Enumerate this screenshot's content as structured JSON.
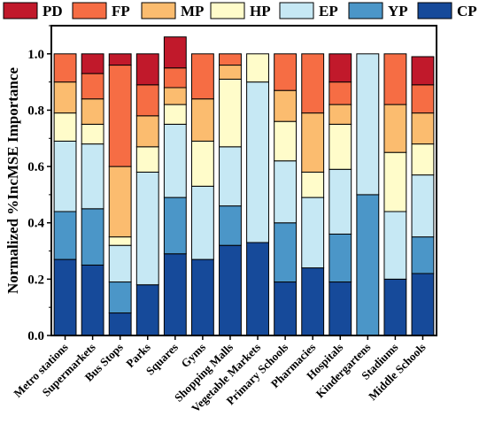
{
  "chart_data": {
    "type": "bar",
    "stacked": true,
    "normalized": true,
    "title": "",
    "xlabel": "",
    "ylabel": "Normalized %IncMSE Importance",
    "ylim": [
      0,
      1.1
    ],
    "yticks": [
      "0.0",
      "0.2",
      "0.4",
      "0.6",
      "0.8",
      "1.0"
    ],
    "legend_position": "top",
    "grid": false,
    "categories": [
      "Metro stations",
      "Supermarkets",
      "Bus Stops",
      "Parks",
      "Squares",
      "Gyms",
      "Shopping Malls",
      "Vegetable Markets",
      "Primary Schools",
      "Pharmacies",
      "Hospitals",
      "Kindergartens",
      "Stadiums",
      "Middle Schools"
    ],
    "series": [
      {
        "name": "CP",
        "color": "#164a9a",
        "values": [
          0.27,
          0.25,
          0.08,
          0.18,
          0.29,
          0.27,
          0.32,
          0.33,
          0.19,
          0.24,
          0.19,
          0.0,
          0.2,
          0.22
        ]
      },
      {
        "name": "YP",
        "color": "#4b96c8",
        "values": [
          0.17,
          0.2,
          0.11,
          0.0,
          0.2,
          0.0,
          0.14,
          0.0,
          0.21,
          0.0,
          0.17,
          0.5,
          0.0,
          0.13
        ]
      },
      {
        "name": "EP",
        "color": "#c6e8f4",
        "values": [
          0.25,
          0.23,
          0.13,
          0.4,
          0.26,
          0.26,
          0.21,
          0.57,
          0.22,
          0.25,
          0.23,
          0.5,
          0.24,
          0.22
        ]
      },
      {
        "name": "HP",
        "color": "#fffcca",
        "values": [
          0.1,
          0.07,
          0.03,
          0.09,
          0.07,
          0.16,
          0.24,
          0.1,
          0.14,
          0.09,
          0.16,
          0.0,
          0.21,
          0.11
        ]
      },
      {
        "name": "MP",
        "color": "#fbbc6f",
        "values": [
          0.11,
          0.09,
          0.25,
          0.11,
          0.06,
          0.15,
          0.05,
          0.0,
          0.11,
          0.21,
          0.07,
          0.0,
          0.17,
          0.11
        ]
      },
      {
        "name": "FP",
        "color": "#f66d44",
        "values": [
          0.1,
          0.09,
          0.36,
          0.11,
          0.07,
          0.16,
          0.04,
          0.0,
          0.13,
          0.21,
          0.08,
          0.0,
          0.18,
          0.1
        ]
      },
      {
        "name": "PD",
        "color": "#c1192b",
        "values": [
          0.0,
          0.07,
          0.04,
          0.11,
          0.11,
          0.0,
          0.0,
          0.0,
          0.0,
          0.0,
          0.1,
          0.0,
          0.0,
          0.1
        ]
      }
    ],
    "legend_order": [
      "PD",
      "FP",
      "MP",
      "HP",
      "EP",
      "YP",
      "CP"
    ]
  }
}
